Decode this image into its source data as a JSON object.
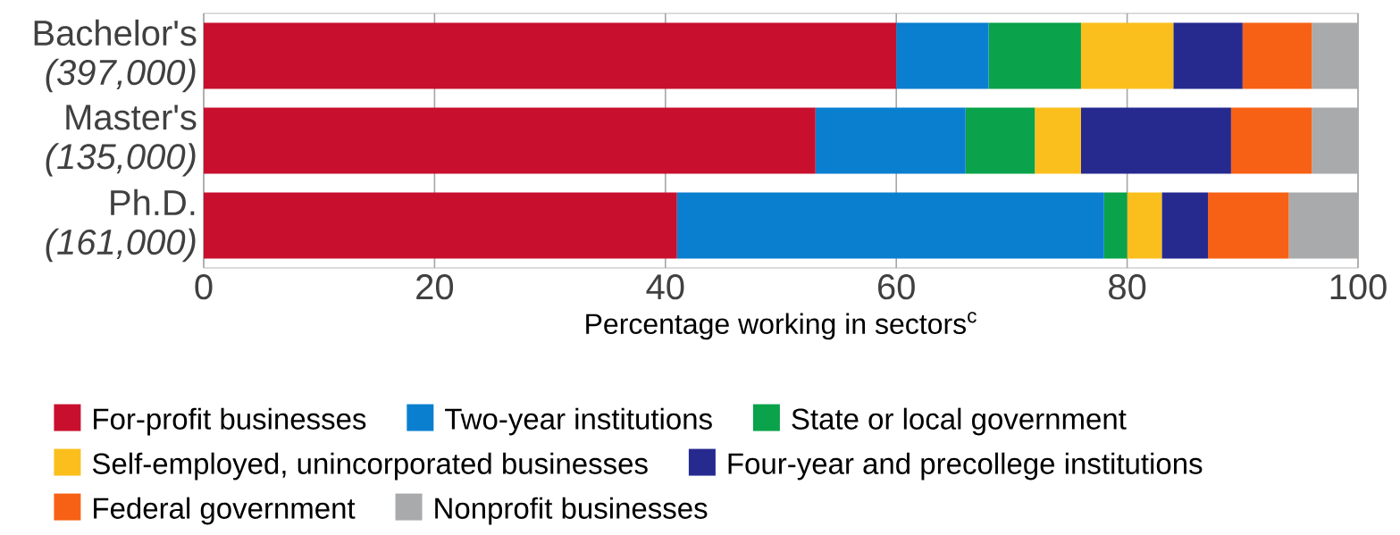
{
  "chart_data": {
    "type": "bar",
    "orientation": "horizontal",
    "stacked": true,
    "categories": [
      "Bachelor's *(397,000)*",
      "Master's *(135,000)*",
      "Ph.D. *(161,000)*"
    ],
    "series": [
      {
        "name": "For-profit businesses",
        "color": "#c8102e",
        "values": [
          60,
          53,
          41
        ]
      },
      {
        "name": "Two-year institutions",
        "color": "#0a7fd0",
        "values": [
          8,
          13,
          37
        ]
      },
      {
        "name": "State or local government",
        "color": "#0aa24a",
        "values": [
          8,
          6,
          2
        ]
      },
      {
        "name": "Self-employed, unincorporated businesses",
        "color": "#fbbf1d",
        "values": [
          8,
          4,
          3
        ]
      },
      {
        "name": "Four-year and precollege institutions",
        "color": "#262a8f",
        "values": [
          6,
          13,
          4
        ]
      },
      {
        "name": "Federal government",
        "color": "#f76115",
        "values": [
          6,
          7,
          7
        ]
      },
      {
        "name": "Nonprofit businesses",
        "color": "#a8aaac",
        "values": [
          4,
          4,
          6
        ]
      }
    ],
    "xlim": [
      0,
      100
    ],
    "xticks": [
      0,
      20,
      40,
      60,
      80,
      100
    ],
    "xlabel": "Percentage working in sectors$^{c}$",
    "grid": "x",
    "legend": "bottom"
  }
}
